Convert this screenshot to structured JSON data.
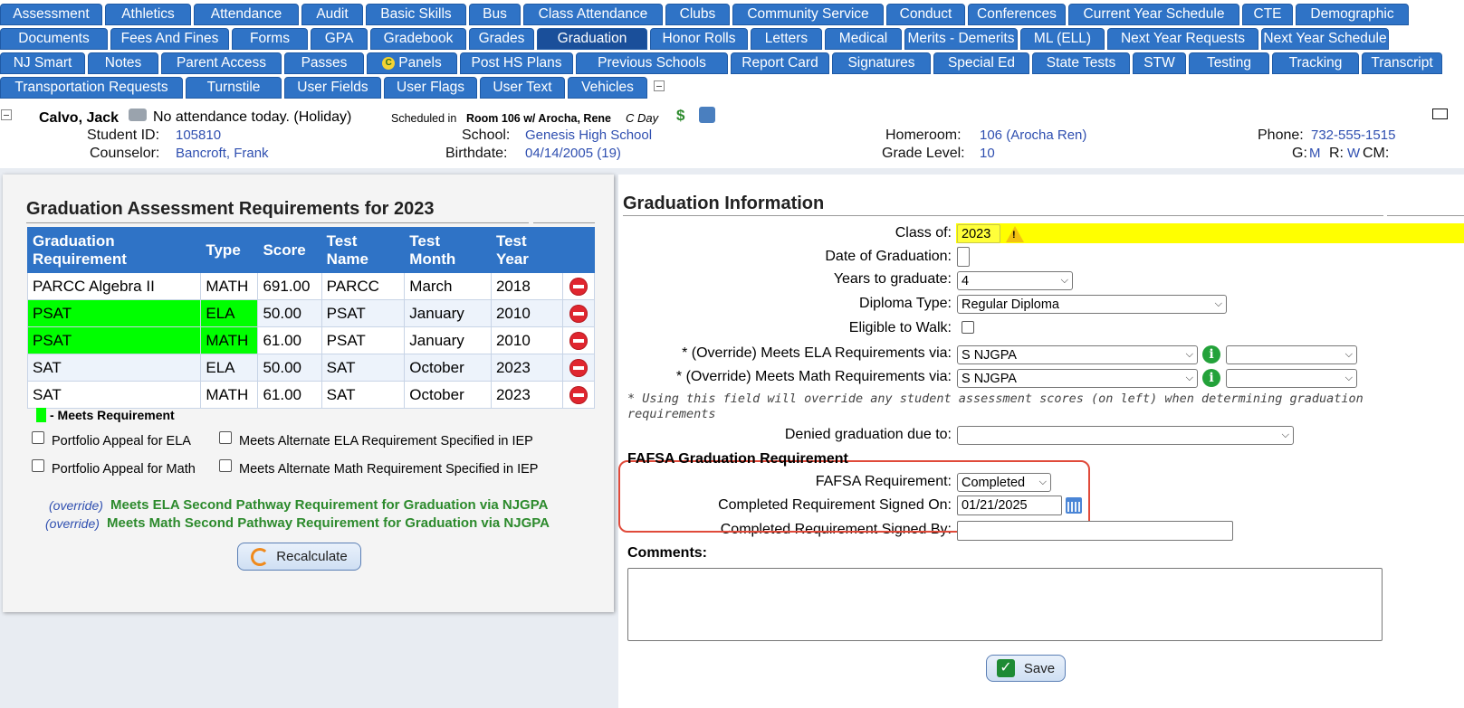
{
  "tabs": {
    "row1": [
      "Assessment",
      "Athletics",
      "Attendance",
      "Audit",
      "Basic Skills",
      "Bus",
      "Class Attendance",
      "Clubs",
      "Community Service",
      "Conduct",
      "Conferences",
      "Current Year Schedule",
      "CTE",
      "Demographic"
    ],
    "row2": [
      "Documents",
      "Fees And Fines",
      "Forms",
      "GPA",
      "Gradebook",
      "Grades",
      "Graduation",
      "Honor Rolls",
      "Letters",
      "Medical",
      "Merits - Demerits",
      "ML (ELL)",
      "Next Year Requests",
      "Next Year Schedule"
    ],
    "row3": [
      "NJ Smart",
      "Notes",
      "Parent Access",
      "Passes",
      "Panels",
      "Post HS Plans",
      "Previous Schools",
      "Report Card",
      "Signatures",
      "Special Ed",
      "State Tests",
      "STW",
      "Testing",
      "Tracking",
      "Transcript"
    ],
    "row4": [
      "Transportation Requests",
      "Turnstile",
      "User Fields",
      "User Flags",
      "User Text",
      "Vehicles"
    ],
    "active": "Graduation",
    "panels_icon_letter": "C"
  },
  "student": {
    "name": "Calvo, Jack",
    "attendance_status": "No attendance today. (Holiday)",
    "scheduled_prefix": "Scheduled in",
    "scheduled_room": "Room 106 w/ Arocha, Rene",
    "day": "C Day",
    "dollar": "$",
    "student_id_label": "Student ID:",
    "student_id": "105810",
    "counselor_label": "Counselor:",
    "counselor": "Bancroft, Frank",
    "school_label": "School:",
    "school": "Genesis High School",
    "birthdate_label": "Birthdate:",
    "birthdate": "04/14/2005 (19)",
    "homeroom_label": "Homeroom:",
    "homeroom": "106 (Arocha Ren)",
    "grade_label": "Grade Level:",
    "grade": "10",
    "phone_label": "Phone:",
    "phone": "732-555-1515",
    "g_label": "G:",
    "g_value": "M",
    "r_label": "R:",
    "r_value": "W",
    "cm_label": "CM:"
  },
  "left": {
    "title": "Graduation Assessment Requirements for 2023",
    "columns": [
      "Graduation Requirement",
      "Type",
      "Score",
      "Test Name",
      "Test Month",
      "Test Year"
    ],
    "rows": [
      {
        "requirement": "PARCC Algebra II",
        "type": "MATH",
        "score": "691.00",
        "test_name": "PARCC",
        "month": "March",
        "year": "2018",
        "meets": false
      },
      {
        "requirement": "PSAT",
        "type": "ELA",
        "score": "50.00",
        "test_name": "PSAT",
        "month": "January",
        "year": "2010",
        "meets": true
      },
      {
        "requirement": "PSAT",
        "type": "MATH",
        "score": "61.00",
        "test_name": "PSAT",
        "month": "January",
        "year": "2010",
        "meets": true
      },
      {
        "requirement": "SAT",
        "type": "ELA",
        "score": "50.00",
        "test_name": "SAT",
        "month": "October",
        "year": "2023",
        "meets": false
      },
      {
        "requirement": "SAT",
        "type": "MATH",
        "score": "61.00",
        "test_name": "SAT",
        "month": "October",
        "year": "2023",
        "meets": false
      }
    ],
    "legend": "- Meets Requirement",
    "checkboxes": {
      "portfolio_ela": "Portfolio Appeal for ELA",
      "alt_ela": "Meets Alternate ELA Requirement Specified in IEP",
      "portfolio_math": "Portfolio Appeal for Math",
      "alt_math": "Meets Alternate Math Requirement Specified in IEP"
    },
    "override_label": "(override)",
    "pathway_ela": "Meets ELA Second Pathway Requirement for Graduation via NJGPA",
    "pathway_math": "Meets Math Second Pathway Requirement for Graduation via NJGPA",
    "recalculate": "Recalculate"
  },
  "right": {
    "title": "Graduation Information",
    "class_of_label": "Class of:",
    "class_of": "2023",
    "date_of_graduation_label": "Date of Graduation:",
    "years_label": "Years to graduate:",
    "years": "4",
    "diploma_label": "Diploma Type:",
    "diploma": "Regular Diploma",
    "eligible_label": "Eligible to Walk:",
    "ela_override_label": "* (Override) Meets ELA Requirements via:",
    "ela_override": "S NJGPA",
    "math_override_label": "* (Override) Meets Math Requirements via:",
    "math_override": "S NJGPA",
    "note": "* Using this field will override any student assessment scores (on left) when determining graduation requirements",
    "denied_label": "Denied graduation due to:",
    "fafsa_heading": "FAFSA Graduation Requirement",
    "fafsa_req_label": "FAFSA Requirement:",
    "fafsa_req": "Completed",
    "signed_on_label": "Completed Requirement Signed On:",
    "signed_on": "01/21/2025",
    "signed_by_label": "Completed Requirement Signed By:",
    "comments_label": "Comments:",
    "save": "Save"
  },
  "colors": {
    "tab_blue": "#2f73c6",
    "meets_green": "#00ff00",
    "highlight_yellow": "#ffff00",
    "fafsa_border": "#e04a3a"
  }
}
